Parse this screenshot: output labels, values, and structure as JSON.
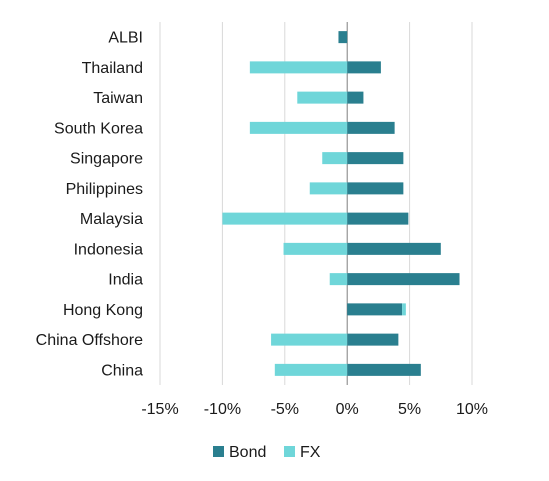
{
  "chart_data": {
    "type": "bar",
    "orientation": "horizontal",
    "stacked": true,
    "categories": [
      "ALBI",
      "Thailand",
      "Taiwan",
      "South Korea",
      "Singapore",
      "Philippines",
      "Malaysia",
      "Indonesia",
      "India",
      "Hong Kong",
      "China Offshore",
      "China"
    ],
    "series": [
      {
        "name": "Bond",
        "color": "#2a7f8f",
        "values": [
          -0.7,
          2.7,
          1.3,
          3.8,
          4.5,
          4.5,
          4.9,
          7.5,
          9.0,
          4.4,
          4.1,
          5.9
        ]
      },
      {
        "name": "FX",
        "color": "#6fd6d9",
        "values": [
          0.0,
          -7.8,
          -4.0,
          -7.8,
          -2.0,
          -3.0,
          -10.0,
          -5.1,
          -1.4,
          0.3,
          -6.1,
          -5.8
        ]
      }
    ],
    "xticks": [
      "-15%",
      "-10%",
      "-5%",
      "0%",
      "5%",
      "10%"
    ],
    "xtick_values": [
      -15,
      -10,
      -5,
      0,
      5,
      10
    ],
    "xlim": [
      -15,
      10
    ],
    "grid": "vertical",
    "legend": "bottom-center",
    "title": "",
    "xlabel": "",
    "ylabel": ""
  }
}
